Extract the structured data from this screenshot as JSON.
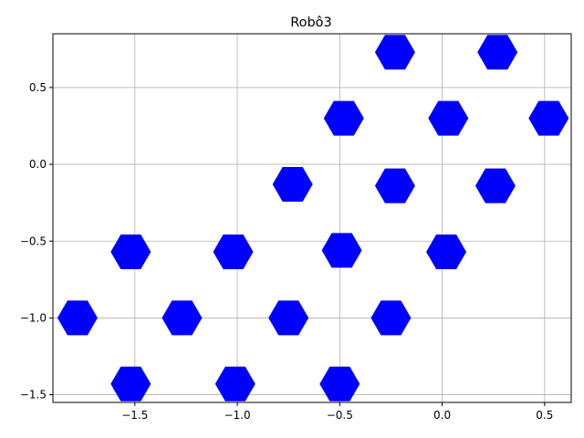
{
  "chart_data": {
    "type": "scatter",
    "title": "Robô3",
    "xlabel": "",
    "ylabel": "",
    "xlim": [
      -1.9,
      0.63
    ],
    "ylim": [
      -1.55,
      0.85
    ],
    "x_ticks": [
      -1.5,
      -1.0,
      -0.5,
      0.0,
      0.5
    ],
    "x_tick_labels": [
      "−1.5",
      "−1.0",
      "−0.5",
      "0.0",
      "0.5"
    ],
    "y_ticks": [
      -1.5,
      -1.0,
      -0.5,
      0.0,
      0.5
    ],
    "y_tick_labels": [
      "−1.5",
      "−1.0",
      "−0.5",
      "0.0",
      "0.5"
    ],
    "grid": true,
    "marker": "hexagon",
    "marker_color": "#0000ff",
    "series": [
      {
        "points": [
          {
            "x": -0.23,
            "y": 0.73
          },
          {
            "x": 0.27,
            "y": 0.73
          },
          {
            "x": -0.48,
            "y": 0.3
          },
          {
            "x": 0.03,
            "y": 0.3
          },
          {
            "x": 0.52,
            "y": 0.3
          },
          {
            "x": -0.73,
            "y": -0.13
          },
          {
            "x": -0.23,
            "y": -0.14
          },
          {
            "x": 0.26,
            "y": -0.14
          },
          {
            "x": -1.52,
            "y": -0.57
          },
          {
            "x": -1.02,
            "y": -0.57
          },
          {
            "x": -0.49,
            "y": -0.56
          },
          {
            "x": 0.02,
            "y": -0.57
          },
          {
            "x": -1.78,
            "y": -1.0
          },
          {
            "x": -1.27,
            "y": -1.0
          },
          {
            "x": -0.75,
            "y": -1.0
          },
          {
            "x": -0.25,
            "y": -1.0
          },
          {
            "x": -1.52,
            "y": -1.43
          },
          {
            "x": -1.01,
            "y": -1.43
          },
          {
            "x": -0.5,
            "y": -1.43
          }
        ]
      }
    ]
  }
}
